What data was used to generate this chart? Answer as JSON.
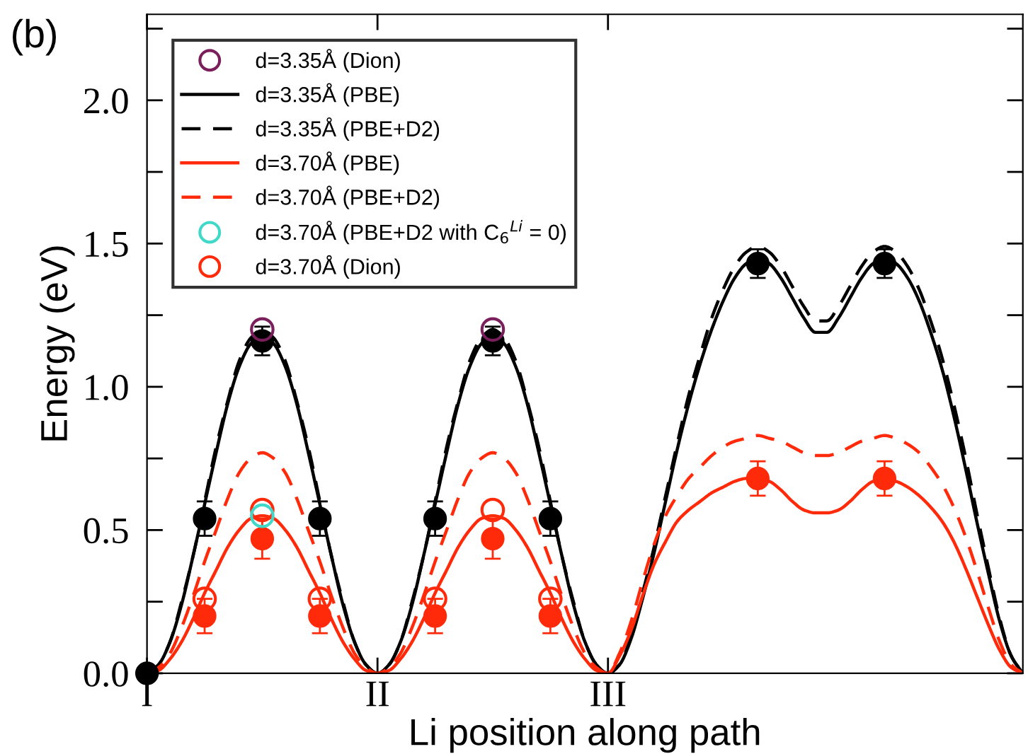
{
  "chart_data": {
    "type": "line",
    "title": "(b)",
    "xlabel": "Li position along path",
    "ylabel": "Energy (eV)",
    "categories": [
      "I",
      null,
      null,
      null,
      null,
      null,
      null,
      null,
      null,
      null,
      null,
      null,
      null,
      null,
      null,
      null,
      null,
      null,
      null,
      null,
      "II",
      null,
      null,
      null,
      null,
      null,
      null,
      null,
      null,
      null,
      null,
      null,
      null,
      null,
      null,
      null,
      null,
      null,
      null,
      null,
      "III",
      null,
      null,
      null,
      null,
      null,
      null,
      null,
      null,
      null,
      null,
      null,
      null,
      null,
      null,
      null,
      null,
      null,
      null,
      null,
      null,
      null,
      null,
      null,
      null,
      null,
      null,
      null,
      null,
      null,
      null,
      null,
      null,
      null,
      null,
      null,
      null
    ],
    "ylim": [
      0,
      2.3
    ],
    "yticks": [
      {
        "value": 0,
        "label": "0.0"
      },
      {
        "value": 0.25,
        "label": null
      },
      {
        "value": 0.5,
        "label": "0.5"
      },
      {
        "value": 0.75,
        "label": null
      },
      {
        "value": 1,
        "label": "1.0"
      },
      {
        "value": 1.25,
        "label": null
      },
      {
        "value": 1.5,
        "label": "1.5"
      },
      {
        "value": 1.75,
        "label": null
      },
      {
        "value": 2,
        "label": "2.0"
      },
      {
        "value": 2.25,
        "label": null
      }
    ],
    "legend": "top left",
    "series": [
      {
        "name": "d=3.35Å (Dion)",
        "type": "scatter",
        "marker": "circle",
        "color": "#7a1f5c",
        "values": [
          null,
          null,
          null,
          null,
          null,
          null,
          null,
          null,
          null,
          null,
          1.2,
          null,
          null,
          null,
          null,
          null,
          null,
          null,
          null,
          null,
          null,
          null,
          null,
          null,
          null,
          null,
          null,
          null,
          null,
          null,
          1.2,
          null,
          null,
          null,
          null,
          null,
          null,
          null,
          null,
          null,
          null,
          null,
          null,
          null,
          null,
          null,
          null,
          null,
          null,
          null,
          null,
          null,
          null,
          null,
          null,
          null,
          null,
          null,
          null,
          null,
          null,
          null,
          null,
          null,
          null,
          null,
          null,
          null,
          null,
          null,
          null,
          null,
          null,
          null,
          null,
          null,
          null
        ]
      },
      {
        "name": "d=3.35Å (PBE)",
        "line_style": "solid",
        "color": "#000000",
        "values": [
          0,
          0.03,
          0.11,
          0.24,
          0.41,
          0.59,
          0.77,
          0.94,
          1.07,
          1.15,
          1.18,
          1.15,
          1.07,
          0.94,
          0.77,
          0.59,
          0.41,
          0.24,
          0.11,
          0.03,
          0,
          0.03,
          0.11,
          0.24,
          0.41,
          0.59,
          0.77,
          0.94,
          1.07,
          1.15,
          1.18,
          1.15,
          1.07,
          0.94,
          0.77,
          0.59,
          0.41,
          0.24,
          0.11,
          0.03,
          0,
          0.03,
          0.12,
          0.26,
          0.42,
          0.6,
          0.78,
          0.94,
          1.08,
          1.2,
          1.3,
          1.38,
          1.43,
          1.45,
          1.43,
          1.38,
          1.31,
          1.24,
          1.19,
          1.19,
          1.24,
          1.31,
          1.38,
          1.43,
          1.45,
          1.43,
          1.38,
          1.3,
          1.19,
          1.06,
          0.9,
          0.72,
          0.53,
          0.35,
          0.18,
          0.06,
          0
        ]
      },
      {
        "name": "d=3.35Å (PBE+D2)",
        "line_style": "dashed",
        "color": "#000000",
        "values": [
          0,
          0.03,
          0.11,
          0.25,
          0.41,
          0.6,
          0.79,
          0.95,
          1.09,
          1.17,
          1.2,
          1.17,
          1.09,
          0.95,
          0.79,
          0.6,
          0.41,
          0.25,
          0.11,
          0.03,
          0,
          0.03,
          0.11,
          0.25,
          0.41,
          0.6,
          0.79,
          0.95,
          1.09,
          1.17,
          1.2,
          1.17,
          1.09,
          0.95,
          0.79,
          0.6,
          0.41,
          0.25,
          0.11,
          0.03,
          0,
          0.03,
          0.13,
          0.28,
          0.44,
          0.62,
          0.8,
          0.97,
          1.11,
          1.24,
          1.34,
          1.42,
          1.47,
          1.49,
          1.47,
          1.42,
          1.35,
          1.28,
          1.23,
          1.23,
          1.28,
          1.35,
          1.42,
          1.47,
          1.49,
          1.47,
          1.42,
          1.34,
          1.23,
          1.1,
          0.94,
          0.76,
          0.56,
          0.37,
          0.19,
          0.06,
          0
        ]
      },
      {
        "name": "d=3.70Å (PBE)",
        "line_style": "solid",
        "color": "#ff2a0a",
        "values": [
          0,
          0.01,
          0.05,
          0.11,
          0.19,
          0.28,
          0.36,
          0.44,
          0.5,
          0.54,
          0.55,
          0.54,
          0.5,
          0.44,
          0.36,
          0.28,
          0.19,
          0.11,
          0.05,
          0.01,
          0,
          0.01,
          0.05,
          0.11,
          0.19,
          0.28,
          0.36,
          0.44,
          0.5,
          0.54,
          0.55,
          0.54,
          0.5,
          0.44,
          0.36,
          0.28,
          0.19,
          0.11,
          0.05,
          0.01,
          0,
          0.06,
          0.15,
          0.27,
          0.38,
          0.46,
          0.53,
          0.57,
          0.6,
          0.63,
          0.65,
          0.67,
          0.68,
          0.68,
          0.67,
          0.64,
          0.6,
          0.57,
          0.56,
          0.56,
          0.57,
          0.6,
          0.64,
          0.67,
          0.68,
          0.67,
          0.65,
          0.62,
          0.58,
          0.53,
          0.46,
          0.37,
          0.27,
          0.17,
          0.08,
          0.02,
          0
        ]
      },
      {
        "name": "d=3.70Å (PBE+D2)",
        "line_style": "dashed",
        "color": "#ff2a0a",
        "values": [
          0,
          0.02,
          0.07,
          0.16,
          0.27,
          0.39,
          0.5,
          0.61,
          0.7,
          0.75,
          0.77,
          0.75,
          0.7,
          0.61,
          0.5,
          0.39,
          0.27,
          0.16,
          0.07,
          0.02,
          0,
          0.02,
          0.07,
          0.16,
          0.27,
          0.39,
          0.5,
          0.61,
          0.7,
          0.75,
          0.77,
          0.75,
          0.7,
          0.61,
          0.5,
          0.39,
          0.27,
          0.16,
          0.07,
          0.02,
          0,
          0.07,
          0.18,
          0.32,
          0.45,
          0.55,
          0.62,
          0.68,
          0.72,
          0.76,
          0.79,
          0.81,
          0.82,
          0.83,
          0.82,
          0.81,
          0.79,
          0.77,
          0.76,
          0.76,
          0.77,
          0.79,
          0.81,
          0.82,
          0.83,
          0.82,
          0.8,
          0.77,
          0.72,
          0.66,
          0.58,
          0.48,
          0.36,
          0.23,
          0.11,
          0.03,
          0
        ]
      },
      {
        "name": "d=3.70Å (PBE+D2 with C$_{6}$$^{Li}$ = 0)",
        "type": "scatter",
        "marker": "circle",
        "color": "#40d8c8",
        "values": [
          null,
          null,
          null,
          null,
          null,
          null,
          null,
          null,
          null,
          null,
          0.55,
          null,
          null,
          null,
          null,
          null,
          null,
          null,
          null,
          null,
          null,
          null,
          null,
          null,
          null,
          null,
          null,
          null,
          null,
          null,
          null,
          null,
          null,
          null,
          null,
          null,
          null,
          null,
          null,
          null,
          null,
          null,
          null,
          null,
          null,
          null,
          null,
          null,
          null,
          null,
          null,
          null,
          null,
          null,
          null,
          null,
          null,
          null,
          null,
          null,
          null,
          null,
          null,
          null,
          null,
          null,
          null,
          null,
          null,
          null,
          null,
          null,
          null,
          null,
          null,
          null,
          null
        ]
      },
      {
        "name": "d=3.70Å (Dion)",
        "type": "scatter",
        "marker": "circle",
        "color": "#ff2a0a",
        "values": [
          null,
          null,
          null,
          null,
          null,
          0.26,
          null,
          null,
          null,
          null,
          0.57,
          null,
          null,
          null,
          null,
          0.26,
          null,
          null,
          null,
          null,
          null,
          null,
          null,
          null,
          null,
          0.26,
          null,
          null,
          null,
          null,
          0.57,
          null,
          null,
          null,
          null,
          0.26,
          null,
          null,
          null,
          null,
          null,
          null,
          null,
          null,
          null,
          null,
          null,
          null,
          null,
          null,
          null,
          null,
          null,
          null,
          null,
          null,
          null,
          null,
          null,
          null,
          null,
          null,
          null,
          null,
          null,
          null,
          null,
          null,
          null,
          null,
          null,
          null,
          null,
          null,
          null,
          null,
          null
        ]
      },
      {
        "type": "scatter",
        "marker": "circle",
        "color": "#000000",
        "values": [
          0,
          null,
          null,
          null,
          null,
          0.54,
          null,
          null,
          null,
          null,
          1.16,
          null,
          null,
          null,
          null,
          0.54,
          null,
          null,
          null,
          null,
          null,
          null,
          null,
          null,
          null,
          0.54,
          null,
          null,
          null,
          null,
          1.16,
          null,
          null,
          null,
          null,
          0.54,
          null,
          null,
          null,
          null,
          null,
          null,
          null,
          null,
          null,
          null,
          null,
          null,
          null,
          null,
          null,
          null,
          null,
          1.43,
          null,
          null,
          null,
          null,
          null,
          null,
          null,
          null,
          null,
          null,
          1.43,
          null,
          null,
          null,
          null,
          null,
          null,
          null,
          null,
          null,
          null,
          null,
          null
        ],
        "errors": [
          null,
          null,
          null,
          null,
          null,
          0.06,
          null,
          null,
          null,
          null,
          0.05,
          null,
          null,
          null,
          null,
          0.06,
          null,
          null,
          null,
          null,
          null,
          null,
          null,
          null,
          null,
          0.06,
          null,
          null,
          null,
          null,
          0.05,
          null,
          null,
          null,
          null,
          0.06,
          null,
          null,
          null,
          null,
          null,
          null,
          null,
          null,
          null,
          null,
          null,
          null,
          null,
          null,
          null,
          null,
          null,
          0.05,
          null,
          null,
          null,
          null,
          null,
          null,
          null,
          null,
          null,
          null,
          0.05,
          null,
          null,
          null,
          null,
          null,
          null,
          null,
          null,
          null,
          null,
          null,
          null
        ]
      },
      {
        "type": "scatter",
        "marker": "circle",
        "color": "#ff2a0a",
        "values": [
          null,
          null,
          null,
          null,
          null,
          0.2,
          null,
          null,
          null,
          null,
          0.47,
          null,
          null,
          null,
          null,
          0.2,
          null,
          null,
          null,
          null,
          null,
          null,
          null,
          null,
          null,
          0.2,
          null,
          null,
          null,
          null,
          0.47,
          null,
          null,
          null,
          null,
          0.2,
          null,
          null,
          null,
          null,
          null,
          null,
          null,
          null,
          null,
          null,
          null,
          null,
          null,
          null,
          null,
          null,
          null,
          0.68,
          null,
          null,
          null,
          null,
          null,
          null,
          null,
          null,
          null,
          null,
          0.68,
          null,
          null,
          null,
          null,
          null,
          null,
          null,
          null,
          null,
          null,
          null,
          null
        ],
        "errors": [
          null,
          null,
          null,
          null,
          null,
          0.06,
          null,
          null,
          null,
          null,
          0.07,
          null,
          null,
          null,
          null,
          0.06,
          null,
          null,
          null,
          null,
          null,
          null,
          null,
          null,
          null,
          0.06,
          null,
          null,
          null,
          null,
          0.07,
          null,
          null,
          null,
          null,
          0.06,
          null,
          null,
          null,
          null,
          null,
          null,
          null,
          null,
          null,
          null,
          null,
          null,
          null,
          null,
          null,
          null,
          null,
          0.06,
          null,
          null,
          null,
          null,
          null,
          null,
          null,
          null,
          null,
          null,
          0.06,
          null,
          null,
          null,
          null,
          null,
          null,
          null,
          null,
          null,
          null,
          null,
          null
        ]
      }
    ]
  }
}
